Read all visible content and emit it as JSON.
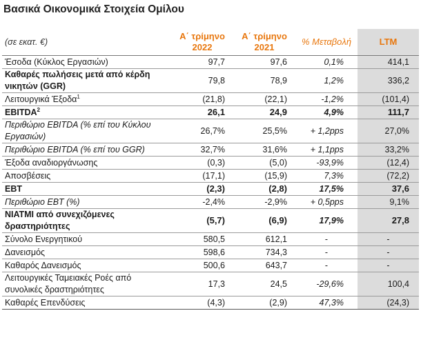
{
  "title": "Βασικά Οικονομικά Στοιχεία Ομίλου",
  "header": {
    "unit": "(σε εκατ. €)",
    "col1": "Α΄ τρίμηνο 2022",
    "col2": "Α΄ τρίμηνο 2021",
    "col3": "% Μεταβολή",
    "col4": "LTM"
  },
  "rows": [
    {
      "label": "Έσοδα (Κύκλος Εργασιών)",
      "sup": "",
      "v1": "97,7",
      "v2": "97,6",
      "pct": "0,1%",
      "ltm": "414,1",
      "bold": false,
      "italic": false,
      "two": false
    },
    {
      "label": "Καθαρές πωλήσεις μετά από κέρδη νικητών (GGR)",
      "sup": "",
      "v1": "79,8",
      "v2": "78,9",
      "pct": "1,2%",
      "ltm": "336,2",
      "bold": false,
      "boldLabel": true,
      "italic": false,
      "two": true
    },
    {
      "label": "Λειτουργικά Έξοδα",
      "sup": "1",
      "v1": "(21,8)",
      "v2": "(22,1)",
      "pct": "-1,2%",
      "ltm": "(101,4)",
      "bold": false,
      "italic": false,
      "two": false
    },
    {
      "label": "EBITDA",
      "sup": "2",
      "v1": "26,1",
      "v2": "24,9",
      "pct": "4,9%",
      "ltm": "111,7",
      "bold": true,
      "italic": false,
      "two": false
    },
    {
      "label": "Περιθώριο EBITDA (% επί του Κύκλου Εργασιών)",
      "sup": "",
      "v1": "26,7%",
      "v2": "25,5%",
      "pct": "+ 1,2pps",
      "ltm": "27,0%",
      "bold": false,
      "italic": true,
      "two": true
    },
    {
      "label": "Περιθώριο EBITDA (% επί του GGR)",
      "sup": "",
      "v1": "32,7%",
      "v2": "31,6%",
      "pct": "+ 1,1pps",
      "ltm": "33,2%",
      "bold": false,
      "italic": true,
      "two": false
    },
    {
      "label": "Έξοδα αναδιοργάνωσης",
      "sup": "",
      "v1": "(0,3)",
      "v2": "(5,0)",
      "pct": "-93,9%",
      "ltm": "(12,4)",
      "bold": false,
      "italic": false,
      "two": false
    },
    {
      "label": "Αποσβέσεις",
      "sup": "",
      "v1": "(17,1)",
      "v2": "(15,9)",
      "pct": "7,3%",
      "ltm": "(72,2)",
      "bold": false,
      "italic": false,
      "two": false
    },
    {
      "label": "EBT",
      "sup": "",
      "v1": "(2,3)",
      "v2": "(2,8)",
      "pct": "17,5%",
      "ltm": "37,6",
      "bold": true,
      "italic": false,
      "two": false
    },
    {
      "label": "Περιθώριο EBT (%)",
      "sup": "",
      "v1": "-2,4%",
      "v2": "-2,9%",
      "pct": "+ 0,5pps",
      "ltm": "9,1%",
      "bold": false,
      "italic": true,
      "two": false
    },
    {
      "label": "ΝΙΑΤΜΙ από συνεχιζόμενες δραστηριότητες",
      "sup": "",
      "v1": "(5,7)",
      "v2": "(6,9)",
      "pct": "17,9%",
      "ltm": "27,8",
      "bold": true,
      "italic": false,
      "two": true
    },
    {
      "label": "Σύνολο Ενεργητικού",
      "sup": "",
      "v1": "580,5",
      "v2": "612,1",
      "pct": "-",
      "ltm": "-",
      "bold": false,
      "italic": false,
      "two": false
    },
    {
      "label": "Δανεισμός",
      "sup": "",
      "v1": "598,6",
      "v2": "734,3",
      "pct": "-",
      "ltm": "-",
      "bold": false,
      "italic": false,
      "two": false
    },
    {
      "label": "Καθαρός Δανεισμός",
      "sup": "",
      "v1": "500,6",
      "v2": "643,7",
      "pct": "-",
      "ltm": "-",
      "bold": false,
      "italic": false,
      "two": false
    },
    {
      "label": "Λειτουργικές Ταμειακές Ροές από συνολικές δραστηριότητες",
      "sup": "",
      "v1": "17,3",
      "v2": "24,5",
      "pct": "-29,6%",
      "ltm": "100,4",
      "bold": false,
      "italic": false,
      "two": true
    },
    {
      "label": "Καθαρές Επενδύσεις",
      "sup": "",
      "v1": "(4,3)",
      "v2": "(2,9)",
      "pct": "47,3%",
      "ltm": "(24,3)",
      "bold": false,
      "italic": false,
      "two": false
    }
  ]
}
